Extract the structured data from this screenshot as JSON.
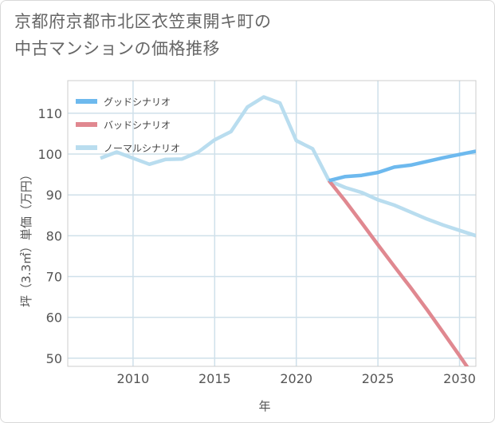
{
  "title": {
    "line1": "京都府京都市北区衣笠東開キ町の",
    "line2": "中古マンションの価格推移"
  },
  "chart_data": {
    "type": "line",
    "xlabel": "年",
    "ylabel": "坪（3.3㎡）単価（万円）",
    "xlim": [
      2006,
      2031
    ],
    "ylim": [
      48,
      118
    ],
    "xticks": [
      2010,
      2015,
      2020,
      2025,
      2030
    ],
    "yticks": [
      50,
      60,
      70,
      80,
      90,
      100,
      110
    ],
    "grid": true,
    "legend_position": "top-left",
    "series": [
      {
        "name": "グッドシナリオ",
        "color": "#6db9ee",
        "x": [
          2022,
          2023,
          2024,
          2025,
          2026,
          2027,
          2028,
          2029,
          2030,
          2031
        ],
        "y": [
          93.5,
          94.5,
          94.8,
          95.5,
          96.8,
          97.3,
          98.2,
          99.1,
          99.9,
          100.7
        ]
      },
      {
        "name": "バッドシナリオ",
        "color": "#e08890",
        "x": [
          2022,
          2023,
          2024,
          2025,
          2026,
          2027,
          2028,
          2029,
          2030,
          2031
        ],
        "y": [
          93.5,
          88.5,
          83.2,
          77.8,
          72.5,
          67.3,
          61.9,
          56.3,
          50.6,
          44.8
        ]
      },
      {
        "name": "ノーマルシナリオ",
        "color": "#b9ddef",
        "x": [
          2008,
          2009,
          2010,
          2011,
          2012,
          2013,
          2014,
          2015,
          2016,
          2017,
          2018,
          2019,
          2020,
          2021,
          2022,
          2023,
          2024,
          2025,
          2026,
          2027,
          2028,
          2029,
          2030,
          2031
        ],
        "y": [
          99,
          100.5,
          99,
          97.5,
          98.7,
          98.8,
          100.5,
          103.5,
          105.5,
          111.5,
          114,
          112.5,
          103.3,
          101.3,
          93.5,
          91.8,
          90.6,
          88.8,
          87.5,
          85.8,
          84.1,
          82.6,
          81.3,
          80
        ]
      }
    ]
  }
}
